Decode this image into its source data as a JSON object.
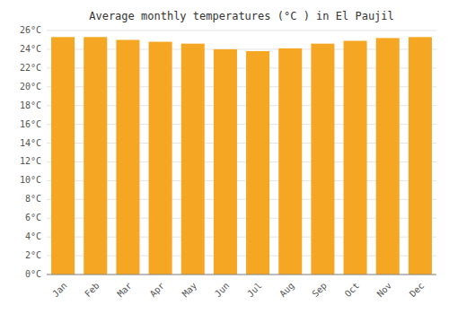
{
  "chart_data": {
    "type": "bar",
    "title": "Average monthly temperatures (°C ) in El Paujil",
    "categories": [
      "Jan",
      "Feb",
      "Mar",
      "Apr",
      "May",
      "Jun",
      "Jul",
      "Aug",
      "Sep",
      "Oct",
      "Nov",
      "Dec"
    ],
    "values": [
      25.3,
      25.3,
      25.0,
      24.8,
      24.6,
      24.0,
      23.8,
      24.1,
      24.6,
      24.9,
      25.2,
      25.3
    ],
    "color": "#F5A623",
    "ylim": [
      0,
      26
    ],
    "yticks": [
      {
        "value": 0,
        "label": "0°C"
      },
      {
        "value": 2,
        "label": "2°C"
      },
      {
        "value": 4,
        "label": "4°C"
      },
      {
        "value": 6,
        "label": "6°C"
      },
      {
        "value": 8,
        "label": "8°C"
      },
      {
        "value": 10,
        "label": "10°C"
      },
      {
        "value": 12,
        "label": "12°C"
      },
      {
        "value": 14,
        "label": "14°C"
      },
      {
        "value": 16,
        "label": "16°C"
      },
      {
        "value": 18,
        "label": "18°C"
      },
      {
        "value": 20,
        "label": "20°C"
      },
      {
        "value": 22,
        "label": "22°C"
      },
      {
        "value": 24,
        "label": "24°C"
      },
      {
        "value": 26,
        "label": "26°C"
      }
    ],
    "grid": true
  }
}
